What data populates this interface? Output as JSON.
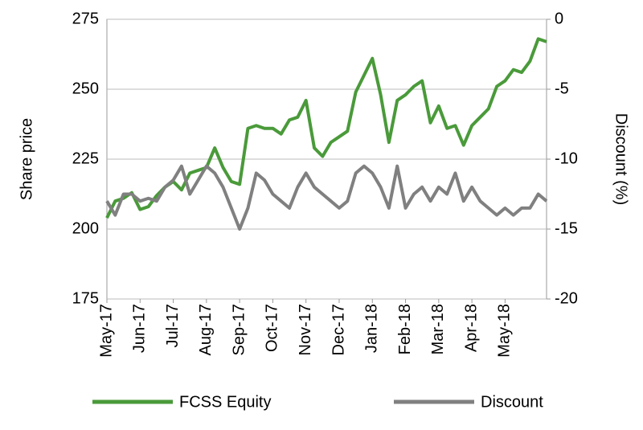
{
  "chart_data": {
    "type": "line",
    "y_label": "Share price",
    "y2_label": "Discount (%)",
    "categories": [
      "May-17",
      null,
      null,
      null,
      "Jun-17",
      null,
      null,
      null,
      "Jul-17",
      null,
      null,
      null,
      "Aug-17",
      null,
      null,
      null,
      "Sep-17",
      null,
      null,
      null,
      "Oct-17",
      null,
      null,
      null,
      "Nov-17",
      null,
      null,
      null,
      "Dec-17",
      null,
      null,
      null,
      "Jan-18",
      null,
      null,
      null,
      "Feb-18",
      null,
      null,
      null,
      "Mar-18",
      null,
      null,
      null,
      "Apr-18",
      null,
      null,
      null,
      "May-18",
      null,
      null,
      null,
      null,
      null
    ],
    "series": [
      {
        "name": "FCSS Equity",
        "color": "#4a9a3a",
        "values": [
          204,
          210,
          211,
          213,
          207,
          208,
          212,
          215,
          217,
          214,
          220,
          221,
          222,
          229,
          222,
          217,
          216,
          236,
          237,
          236,
          236,
          234,
          239,
          240,
          246,
          229,
          226,
          231,
          233,
          235,
          249,
          255,
          261,
          248,
          231,
          246,
          248,
          251,
          253,
          238,
          244,
          236,
          237,
          230,
          237,
          240,
          243,
          251,
          253,
          257,
          256,
          260,
          268,
          267
        ]
      },
      {
        "name": "Discount",
        "color": "#808080",
        "axis": "y2",
        "values": [
          -13,
          -14,
          -12.5,
          -12.5,
          -13,
          -12.8,
          -13,
          -12,
          -11.5,
          -10.5,
          -12.5,
          -11.5,
          -10.5,
          -11,
          -12,
          -13.5,
          -15,
          -13.5,
          -11,
          -11.5,
          -12.5,
          -13,
          -13.5,
          -12,
          -11,
          -12,
          -12.5,
          -13,
          -13.5,
          -13,
          -11,
          -10.5,
          -11,
          -12,
          -13.5,
          -10.5,
          -13.5,
          -12.5,
          -12,
          -13,
          -12,
          -12.5,
          -11,
          -13,
          -12,
          -13,
          -13.5,
          -14,
          -13.5,
          -14,
          -13.5,
          -13.5,
          -12.5,
          -13
        ]
      }
    ],
    "ylim": [
      175,
      275
    ],
    "yticks": [
      175,
      200,
      225,
      250,
      275
    ],
    "y2lim": [
      -20,
      0
    ],
    "y2ticks": [
      -20,
      -15,
      -10,
      -5,
      0
    ],
    "grid": true
  }
}
